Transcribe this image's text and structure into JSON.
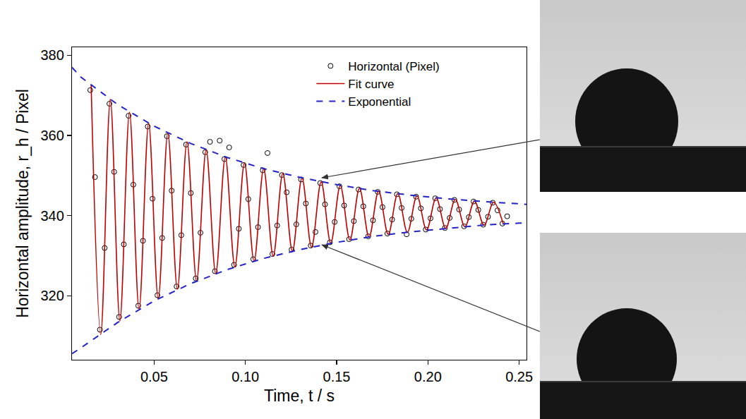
{
  "chart_data": {
    "type": "scatter",
    "x_label": "Time, t / s",
    "y_label": "Horizontal amplitude, r_h / Pixel",
    "xlim": [
      0.005,
      0.254
    ],
    "ylim": [
      304,
      382
    ],
    "xticks": [
      0.05,
      {
        "value": 0.1,
        "label": "0.10"
      },
      0.15,
      {
        "value": 0.2,
        "label": "0.20"
      },
      0.25
    ],
    "yticks": [
      320,
      340,
      360,
      380
    ],
    "grid": false,
    "legend": "upper right",
    "series": [
      {
        "name": "Horizontal (Pixel)",
        "type": "scatter",
        "marker": "open circle",
        "color": "#000000",
        "x": [
          0.015,
          0.0176,
          0.0203,
          0.0229,
          0.0255,
          0.0281,
          0.0308,
          0.0334,
          0.036,
          0.0386,
          0.0413,
          0.0439,
          0.0465,
          0.0491,
          0.0518,
          0.0544,
          0.057,
          0.0596,
          0.0623,
          0.0649,
          0.0675,
          0.0701,
          0.0728,
          0.0754,
          0.078,
          0.0806,
          0.0833,
          0.0859,
          0.0885,
          0.0911,
          0.0938,
          0.0964,
          0.099,
          0.1016,
          0.1043,
          0.1069,
          0.1095,
          0.1121,
          0.1148,
          0.1174,
          0.12,
          0.1226,
          0.1253,
          0.1279,
          0.1305,
          0.1331,
          0.1358,
          0.1384,
          0.141,
          0.1436,
          0.1463,
          0.1489,
          0.1515,
          0.1541,
          0.1568,
          0.1594,
          0.162,
          0.1646,
          0.1673,
          0.1699,
          0.1725,
          0.1751,
          0.1778,
          0.1804,
          0.183,
          0.1856,
          0.1883,
          0.1909,
          0.1935,
          0.1961,
          0.1988,
          0.2014,
          0.204,
          0.2066,
          0.2093,
          0.2119,
          0.2145,
          0.2171,
          0.2198,
          0.2224,
          0.225,
          0.2276,
          0.2303,
          0.2329,
          0.2355,
          0.2381,
          0.2408,
          0.2434
        ],
        "values": [
          371.3,
          349.6,
          311.5,
          331.9,
          367.9,
          350.9,
          314.7,
          332.8,
          364.9,
          347.7,
          317.5,
          333.7,
          362.2,
          344.2,
          320.1,
          334.4,
          359.8,
          346.2,
          322.3,
          335.1,
          357.7,
          345.6,
          324.3,
          335.7,
          355.8,
          358.4,
          326.1,
          358.7,
          354.1,
          357.0,
          327.7,
          336.7,
          352.6,
          344.1,
          329.1,
          337.1,
          351.3,
          355.6,
          330.4,
          337.5,
          350.1,
          345.8,
          331.5,
          337.8,
          349.0,
          343.0,
          332.5,
          335.9,
          348.1,
          342.8,
          333.3,
          338.4,
          347.3,
          342.5,
          334.1,
          338.6,
          346.5,
          342.3,
          334.8,
          338.8,
          345.9,
          342.1,
          335.5,
          339.0,
          345.3,
          341.9,
          335.3,
          339.2,
          344.7,
          341.8,
          336.5,
          339.3,
          344.3,
          341.6,
          336.9,
          339.4,
          343.9,
          341.5,
          337.3,
          339.6,
          343.5,
          341.4,
          337.7,
          339.7,
          343.2,
          341.3,
          338.0,
          339.8
        ]
      },
      {
        "name": "Fit curve",
        "type": "line",
        "line_style": "solid",
        "color": "#c00000",
        "x": [
          0.0155,
          0.02075,
          0.026,
          0.03125,
          0.0365,
          0.04175,
          0.047,
          0.05225,
          0.0575,
          0.06275,
          0.068,
          0.07325,
          0.0785,
          0.08375,
          0.089,
          0.09425,
          0.0995,
          0.10475,
          0.11,
          0.11525,
          0.1205,
          0.12575,
          0.131,
          0.13625,
          0.1415,
          0.14675,
          0.152,
          0.15725,
          0.1625,
          0.16775,
          0.173,
          0.17825,
          0.1835,
          0.18875,
          0.194,
          0.19925,
          0.2045,
          0.20975,
          0.215,
          0.22025,
          0.2255,
          0.23075,
          0.236,
          0.24125
        ],
        "values": [
          372.5,
          310.3,
          369.0,
          313.7,
          365.8,
          316.6,
          363.0,
          319.2,
          360.6,
          321.6,
          358.4,
          323.7,
          356.4,
          325.5,
          354.6,
          327.2,
          353.1,
          328.6,
          351.7,
          329.9,
          350.5,
          331.1,
          349.4,
          332.1,
          348.4,
          333.1,
          347.5,
          333.9,
          346.8,
          334.6,
          346.1,
          335.3,
          345.5,
          335.8,
          344.9,
          336.4,
          344.4,
          336.8,
          344.0,
          337.2,
          343.6,
          337.6,
          343.3,
          337.9
        ]
      },
      {
        "name": "Exponential",
        "type": "line",
        "line_style": "dashed",
        "color": "#2323c8",
        "x": [
          0.005,
          0.01,
          0.03,
          0.05,
          0.07,
          0.09,
          0.11,
          0.13,
          0.15,
          0.17,
          0.19,
          0.21,
          0.23,
          0.25,
          0.254
        ],
        "values": [
          377.0,
          374.5,
          367.7,
          362.3,
          358.0,
          354.5,
          351.7,
          349.5,
          347.7,
          346.2,
          345.1,
          344.2,
          343.5,
          342.9,
          342.8
        ]
      },
      {
        "name": "Exponential",
        "type": "line",
        "line_style": "dashed",
        "color": "#2323c8",
        "x": [
          0.005,
          0.01,
          0.03,
          0.05,
          0.07,
          0.09,
          0.11,
          0.13,
          0.15,
          0.17,
          0.19,
          0.21,
          0.23,
          0.25,
          0.254
        ],
        "values": [
          305.5,
          307.0,
          313.3,
          318.7,
          323.0,
          326.5,
          329.3,
          331.5,
          333.3,
          334.8,
          335.9,
          336.8,
          337.6,
          338.1,
          338.2
        ]
      }
    ]
  }
}
